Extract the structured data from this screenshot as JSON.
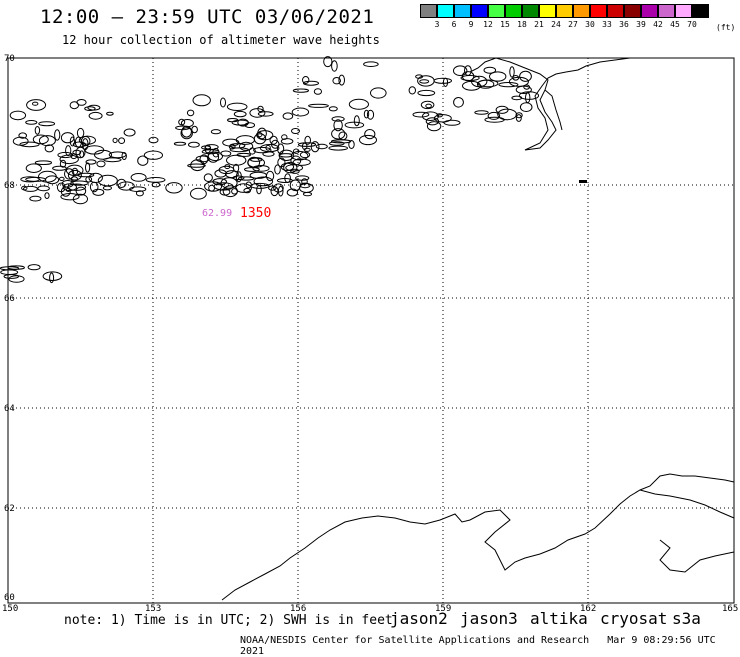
{
  "header": {
    "title": "12:00 – 23:59 UTC 03/06/2021",
    "subtitle": "12 hour collection of altimeter wave heights"
  },
  "legend": {
    "unit": "(ft)",
    "colors": [
      "#808080",
      "#00ffff",
      "#00bfff",
      "#0000ff",
      "#44ff44",
      "#00cc00",
      "#008800",
      "#ffff00",
      "#ffcc00",
      "#ff9900",
      "#ff0000",
      "#cc0000",
      "#880000",
      "#aa00aa",
      "#cc66cc",
      "#ffaaff",
      "#000000"
    ],
    "labels": [
      "3",
      "6",
      "9",
      "12",
      "15",
      "18",
      "21",
      "24",
      "27",
      "30",
      "33",
      "36",
      "39",
      "42",
      "45",
      "70"
    ]
  },
  "map": {
    "lon_ticks": [
      "150",
      "153",
      "156",
      "159",
      "162",
      "165"
    ],
    "lat_ticks": [
      "70",
      "68",
      "66",
      "64",
      "62",
      "60"
    ],
    "annotation": {
      "value_pink": "62.99",
      "value_red": "1350"
    }
  },
  "footer": {
    "note": "note: 1) Time is in UTC; 2) SWH is in feet",
    "satellites": [
      {
        "name": "jason2",
        "color": "#0000cc"
      },
      {
        "name": "jason3",
        "color": "#008800"
      },
      {
        "name": "altika",
        "color": "#ff9900"
      },
      {
        "name": "cryosat",
        "color": "#cc0000"
      },
      {
        "name": "s3a",
        "color": "#880000"
      }
    ],
    "credit": "NOAA/NESDIS Center for Satellite Applications and Research",
    "timestamp": "Mar  9 08:29:56 UTC 2021"
  }
}
